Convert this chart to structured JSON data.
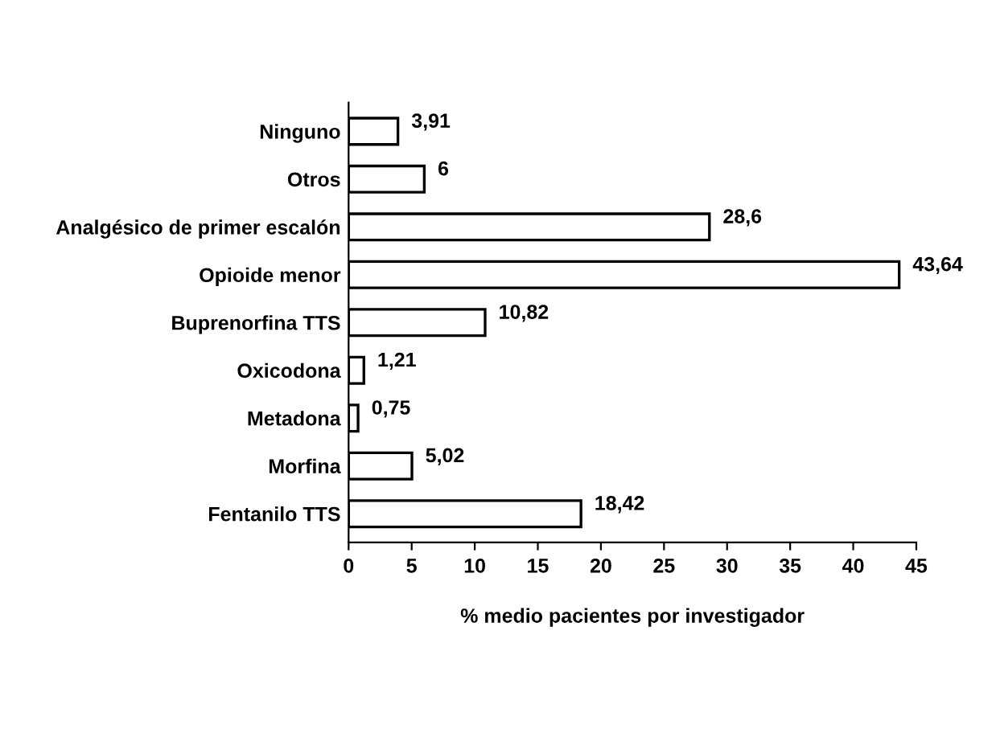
{
  "chart_data": {
    "type": "bar",
    "orientation": "horizontal",
    "xlabel": "% medio pacientes por investigador",
    "categories": [
      "Ninguno",
      "Otros",
      "Analgésico de primer escalón",
      "Opioide menor",
      "Buprenorfina TTS",
      "Oxicodona",
      "Metadona",
      "Morfina",
      "Fentanilo TTS"
    ],
    "values": [
      3.91,
      6,
      28.6,
      43.64,
      10.82,
      1.21,
      0.75,
      5.02,
      18.42
    ],
    "value_labels": [
      "3,91",
      "6",
      "28,6",
      "43,64",
      "10,82",
      "1,21",
      "0,75",
      "5,02",
      "18,42"
    ],
    "color": "#ffffff",
    "xlim": [
      0,
      45
    ],
    "xticks": [
      0,
      5,
      10,
      15,
      20,
      25,
      30,
      35,
      40,
      45
    ],
    "grid": false
  }
}
